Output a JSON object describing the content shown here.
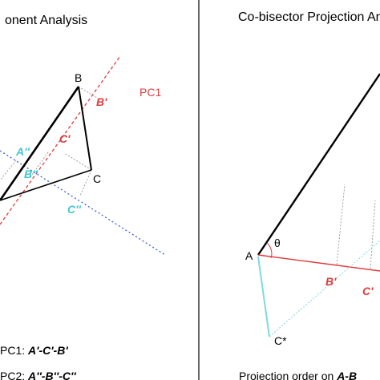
{
  "left_panel": {
    "title": "onent Analysis",
    "points": {
      "B": "B",
      "C": "C"
    },
    "pc1_label": "PC1",
    "proj_pc1": {
      "b": "B'",
      "c": "C'"
    },
    "proj_pc2": {
      "a": "A''",
      "b": "B''",
      "c": "C''"
    },
    "caption_pc1_prefix": "PC1: ",
    "caption_pc1_order": "A'-C'-B'",
    "caption_pc2_prefix": "PC2: ",
    "caption_pc2_order": "A''-B''-C''"
  },
  "right_panel": {
    "title": "Co-bisector Projection An",
    "points": {
      "A": "A",
      "C_star": "C*"
    },
    "angle": "θ",
    "proj": {
      "b": "B'",
      "c": "C'"
    },
    "caption_prefix": "Projection order on ",
    "caption_order": "A-B"
  },
  "colors": {
    "pc1": "#e03c3c",
    "pc2_line": "#3a5bd9",
    "pc2_label": "#3cc8d2",
    "cstar_line": "#7fd9e0",
    "triangle": "#000000",
    "divider": "#333333",
    "guide": "#888888"
  }
}
